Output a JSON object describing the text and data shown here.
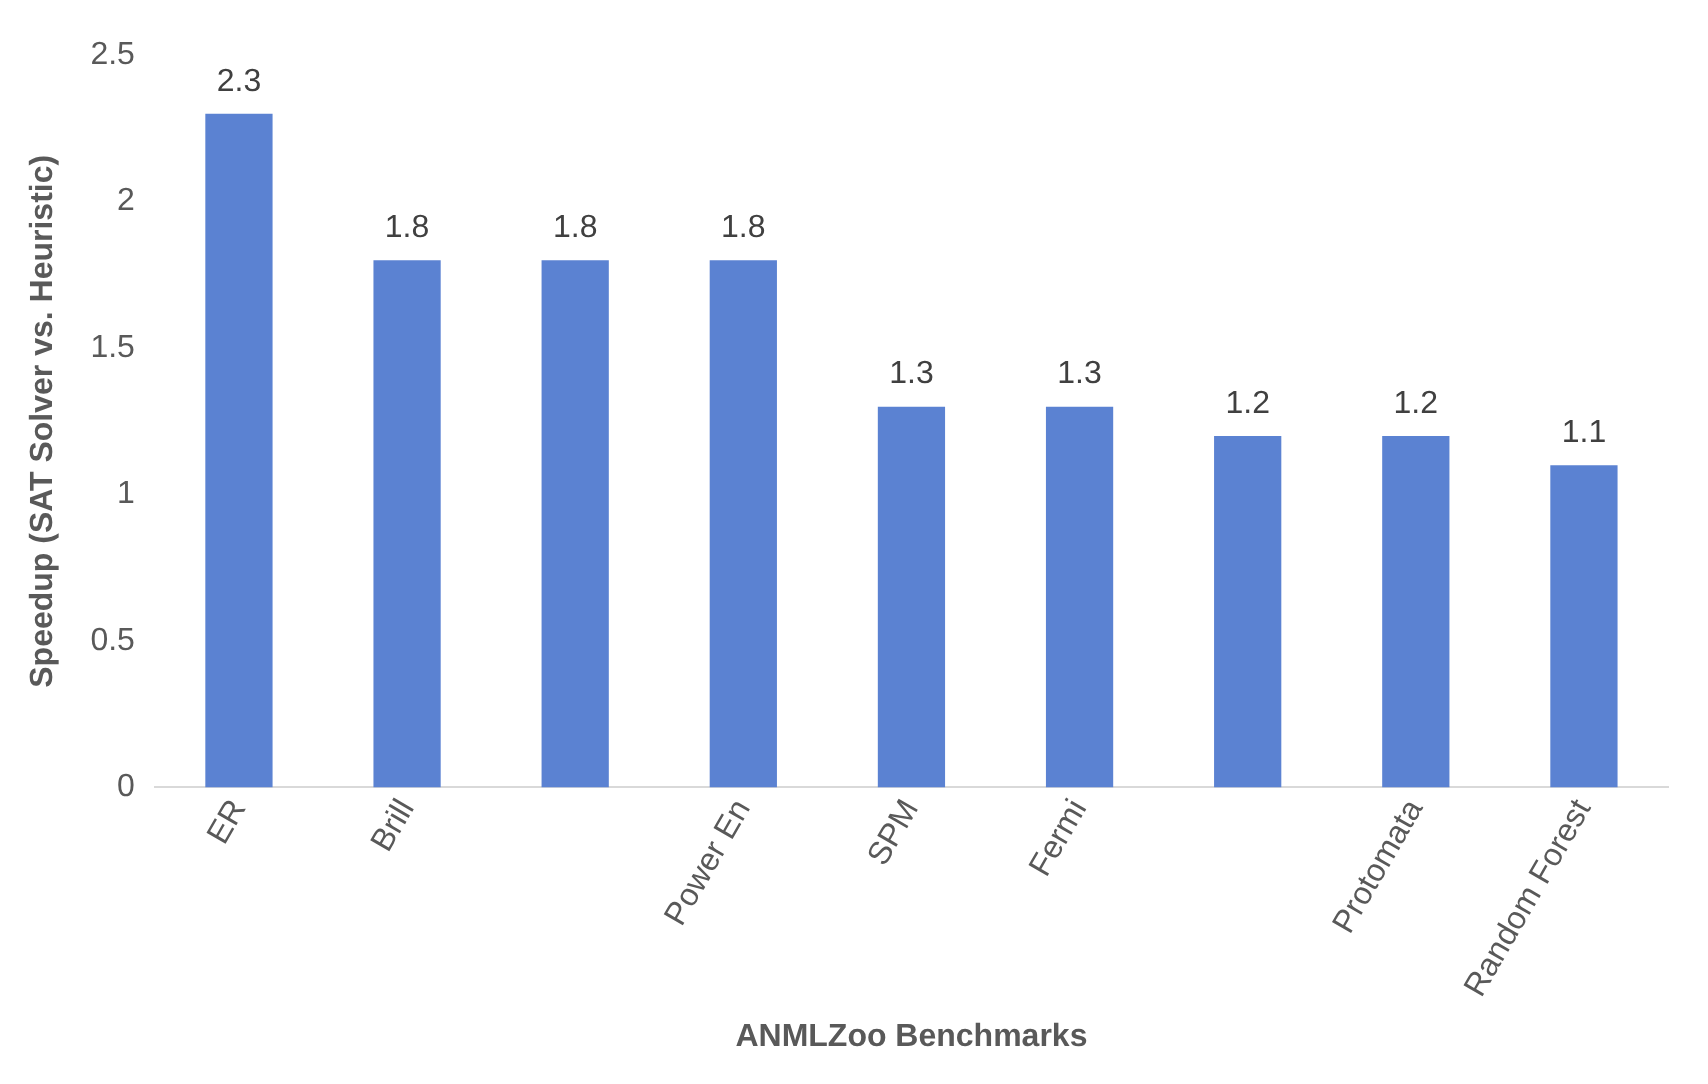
{
  "chart_data": {
    "type": "bar",
    "xlabel": "ANMLZoo Benchmarks",
    "ylabel": "Speedup (SAT Solver vs. Heuristic)",
    "categories": [
      "ER",
      "Brill",
      null,
      "Power En",
      "SPM",
      "Fermi",
      null,
      "Protomata",
      "Random Forest"
    ],
    "values": [
      2.3,
      1.8,
      1.8,
      1.8,
      1.3,
      1.3,
      1.2,
      1.2,
      1.1
    ],
    "color": "#5b82d2",
    "ylim": [
      0,
      2.5
    ],
    "yticks": [
      0,
      0.5,
      1,
      1.5,
      2,
      2.5
    ],
    "grid": false,
    "legend": false,
    "data_labels": true
  }
}
